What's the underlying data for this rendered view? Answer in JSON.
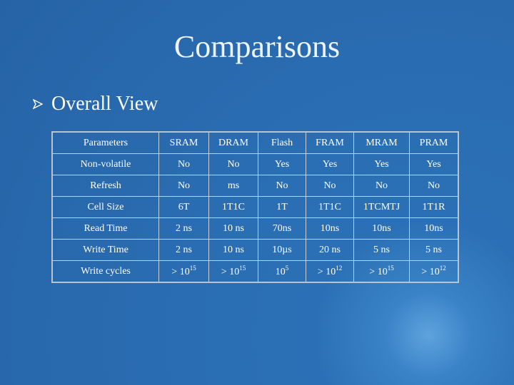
{
  "title": "Comparisons",
  "bullet": "Overall View",
  "table": {
    "header": [
      "Parameters",
      "SRAM",
      "DRAM",
      "Flash",
      "FRAM",
      "MRAM",
      "PRAM"
    ],
    "rows": [
      [
        "Non-volatile",
        "No",
        "No",
        "Yes",
        "Yes",
        "Yes",
        "Yes"
      ],
      [
        "Refresh",
        "No",
        "ms",
        "No",
        "No",
        "No",
        "No"
      ],
      [
        "Cell Size",
        "6T",
        "1T1C",
        "1T",
        "1T1C",
        "1TCMTJ",
        "1T1R"
      ],
      [
        "Read Time",
        "2 ns",
        "10 ns",
        "70ns",
        "10ns",
        "10ns",
        "10ns"
      ],
      [
        "Write Time",
        "2 ns",
        "10 ns",
        "10µs",
        "20 ns",
        "5 ns",
        "5 ns"
      ],
      [
        "Write cycles",
        {
          "text": "> 10",
          "sup": "15"
        },
        {
          "text": "> 10",
          "sup": "15"
        },
        {
          "text": "10",
          "sup": "5"
        },
        {
          "text": "> 10",
          "sup": "12"
        },
        {
          "text": "> 10",
          "sup": "15"
        },
        {
          "text": "> 10",
          "sup": "12"
        }
      ]
    ]
  }
}
